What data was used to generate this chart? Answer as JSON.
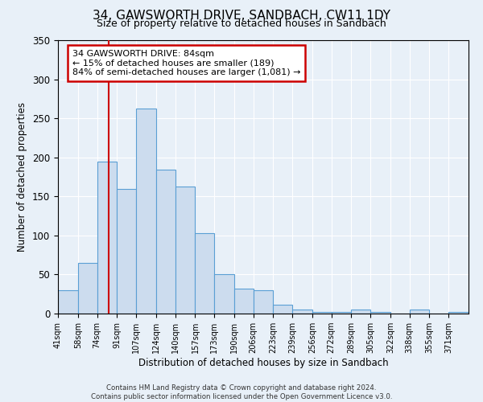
{
  "title": "34, GAWSWORTH DRIVE, SANDBACH, CW11 1DY",
  "subtitle": "Size of property relative to detached houses in Sandbach",
  "xlabel": "Distribution of detached houses by size in Sandbach",
  "ylabel": "Number of detached properties",
  "bin_labels": [
    "41sqm",
    "58sqm",
    "74sqm",
    "91sqm",
    "107sqm",
    "124sqm",
    "140sqm",
    "157sqm",
    "173sqm",
    "190sqm",
    "206sqm",
    "223sqm",
    "239sqm",
    "256sqm",
    "272sqm",
    "289sqm",
    "305sqm",
    "322sqm",
    "338sqm",
    "355sqm",
    "371sqm"
  ],
  "bin_edges": [
    41,
    58,
    74,
    91,
    107,
    124,
    140,
    157,
    173,
    190,
    206,
    223,
    239,
    256,
    272,
    289,
    305,
    322,
    338,
    355,
    371
  ],
  "bar_heights": [
    30,
    65,
    195,
    160,
    262,
    184,
    163,
    103,
    50,
    32,
    30,
    11,
    5,
    2,
    2,
    5,
    2,
    0,
    5,
    0,
    2
  ],
  "bar_color": "#ccdcee",
  "bar_edge_color": "#5a9fd4",
  "reference_line_x": 84,
  "annotation_title": "34 GAWSWORTH DRIVE: 84sqm",
  "annotation_line1": "← 15% of detached houses are smaller (189)",
  "annotation_line2": "84% of semi-detached houses are larger (1,081) →",
  "annotation_box_color": "#ffffff",
  "annotation_box_edge_color": "#cc0000",
  "reference_line_color": "#cc0000",
  "ylim": [
    0,
    350
  ],
  "background_color": "#e8f0f8",
  "plot_background_color": "#e8f0f8",
  "footer1": "Contains HM Land Registry data © Crown copyright and database right 2024.",
  "footer2": "Contains public sector information licensed under the Open Government Licence v3.0."
}
